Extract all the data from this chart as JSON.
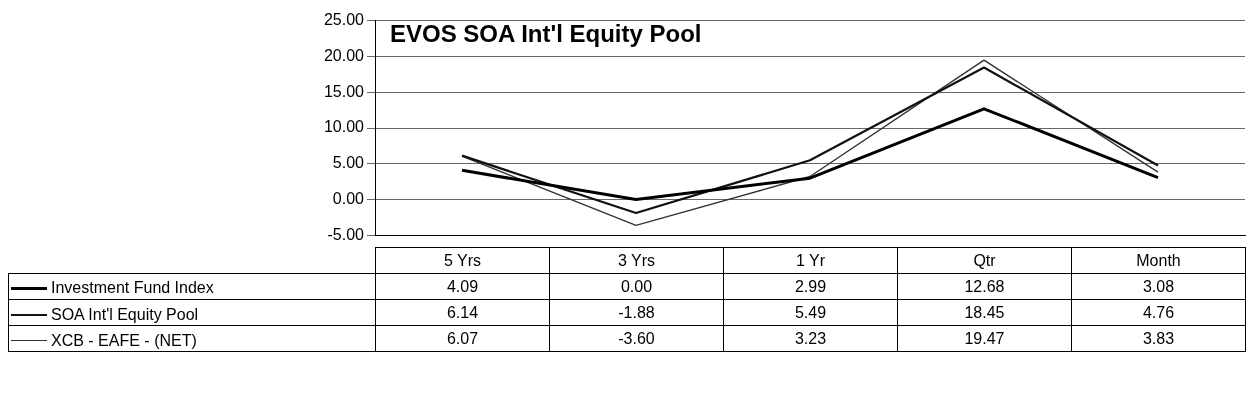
{
  "chart_data": {
    "type": "line",
    "title": "EVOS SOA Int'l Equity Pool",
    "categories": [
      "5 Yrs",
      "3 Yrs",
      "1 Yr",
      "Qtr",
      "Month"
    ],
    "series": [
      {
        "name": "Investment Fund Index",
        "color": "#000000",
        "values": [
          4.09,
          0.0,
          2.99,
          12.68,
          3.08
        ],
        "value_labels": [
          "4.09",
          "0.00",
          "2.99",
          "12.68",
          "3.08"
        ]
      },
      {
        "name": "SOA Int'l Equity Pool",
        "color": "#111111",
        "values": [
          6.14,
          -1.88,
          5.49,
          18.45,
          4.76
        ],
        "value_labels": [
          "6.14",
          "-1.88",
          "5.49",
          "18.45",
          "4.76"
        ]
      },
      {
        "name": "XCB - EAFE - (NET)",
        "color": "#333333",
        "values": [
          6.07,
          -3.6,
          3.23,
          19.47,
          3.83
        ],
        "value_labels": [
          "6.07",
          "-3.60",
          "3.23",
          "19.47",
          "3.83"
        ]
      }
    ],
    "ylim": [
      -5,
      25
    ],
    "yticks": [
      {
        "value": -5,
        "label": "-5.00"
      },
      {
        "value": 0,
        "label": "0.00"
      },
      {
        "value": 5,
        "label": "5.00"
      },
      {
        "value": 10,
        "label": "10.00"
      },
      {
        "value": 15,
        "label": "15.00"
      },
      {
        "value": 20,
        "label": "20.00"
      },
      {
        "value": 25,
        "label": "25.00"
      }
    ],
    "grid": "y",
    "legend": "bottom left",
    "marker": "none",
    "line_style": "solid"
  }
}
